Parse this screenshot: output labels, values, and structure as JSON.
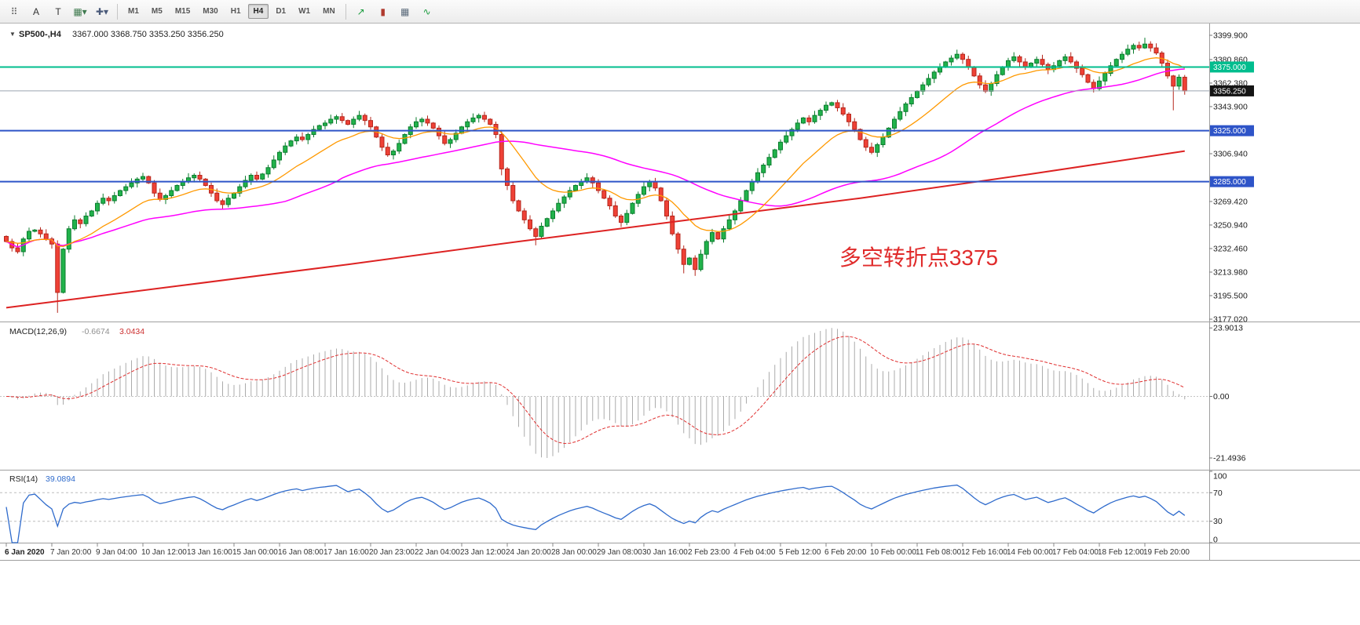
{
  "toolbar": {
    "left_buttons": [
      {
        "name": "pattern-grid-icon",
        "glyph": "⠿",
        "color": "#5a5a5a"
      },
      {
        "name": "text-label-tool",
        "glyph": "A",
        "color": "#333333"
      },
      {
        "name": "text-tool",
        "glyph": "T",
        "color": "#333333"
      },
      {
        "name": "shapes-dropdown",
        "glyph": "▦▾",
        "color": "#3f7a4f"
      },
      {
        "name": "cursor-dropdown",
        "glyph": "✚▾",
        "color": "#4a5a7a"
      }
    ],
    "timeframes": [
      "M1",
      "M5",
      "M15",
      "M30",
      "H1",
      "H4",
      "D1",
      "W1",
      "MN"
    ],
    "active_timeframe": "H4",
    "right_buttons": [
      {
        "name": "trend-up-icon",
        "glyph": "↗",
        "color": "#1a9c3e"
      },
      {
        "name": "candlestick-mode-icon",
        "glyph": "▮",
        "color": "#b03a2e"
      },
      {
        "name": "tile-windows-icon",
        "glyph": "▦",
        "color": "#5a6a7a"
      },
      {
        "name": "line-chart-icon",
        "glyph": "∿",
        "color": "#1a9c3e"
      }
    ]
  },
  "chart": {
    "symbol": "SP500-,H4",
    "ohlc": "3367.000 3368.750 3353.250 3356.250",
    "annotation": {
      "text": "多空转折点3375",
      "color": "#e02b2b"
    },
    "price_axis": {
      "labels": [
        "3399.900",
        "3380.860",
        "3362.380",
        "3343.900",
        "3306.940",
        "3269.420",
        "3250.940",
        "3232.460",
        "3213.980",
        "3195.500",
        "3177.020"
      ],
      "badges": [
        {
          "value": "3375.000",
          "price": 3375.0,
          "bg": "#00bd8e"
        },
        {
          "value": "3356.250",
          "price": 3356.25,
          "bg": "#141414"
        },
        {
          "value": "3325.000",
          "price": 3325.0,
          "bg": "#2e54c8"
        },
        {
          "value": "3285.000",
          "price": 3285.0,
          "bg": "#2e54c8"
        }
      ]
    },
    "hlines": [
      {
        "price": 3375.0,
        "color": "#00bd8e",
        "width": 2
      },
      {
        "price": 3325.0,
        "color": "#2e54c8",
        "width": 2
      },
      {
        "price": 3285.0,
        "color": "#2e54c8",
        "width": 2
      },
      {
        "price": 3356.25,
        "color": "#9aa4b0",
        "width": 1
      }
    ],
    "price_range": [
      3177.02,
      3399.9
    ]
  },
  "chart_data": {
    "type": "candlestick",
    "symbol": "SP500-",
    "timeframe": "H4",
    "colors": {
      "up": "#21b24b",
      "up_border": "#0b7d2e",
      "down": "#ef4136",
      "down_border": "#b5271c"
    },
    "closes": [
      3238,
      3233,
      3230,
      3240,
      3246,
      3247,
      3244,
      3240,
      3236,
      3198,
      3232,
      3248,
      3255,
      3252,
      3258,
      3262,
      3268,
      3272,
      3270,
      3274,
      3278,
      3281,
      3284,
      3287,
      3289,
      3284,
      3276,
      3271,
      3274,
      3278,
      3282,
      3285,
      3288,
      3290,
      3287,
      3282,
      3276,
      3270,
      3267,
      3272,
      3276,
      3281,
      3286,
      3290,
      3287,
      3291,
      3296,
      3302,
      3308,
      3313,
      3317,
      3320,
      3318,
      3322,
      3326,
      3329,
      3331,
      3334,
      3336,
      3333,
      3330,
      3334,
      3337,
      3333,
      3328,
      3320,
      3312,
      3306,
      3309,
      3315,
      3322,
      3328,
      3332,
      3334,
      3331,
      3327,
      3321,
      3315,
      3318,
      3323,
      3328,
      3332,
      3335,
      3337,
      3334,
      3330,
      3322,
      3295,
      3282,
      3270,
      3262,
      3255,
      3248,
      3242,
      3250,
      3256,
      3262,
      3268,
      3273,
      3278,
      3282,
      3285,
      3288,
      3284,
      3278,
      3272,
      3266,
      3258,
      3253,
      3260,
      3268,
      3275,
      3281,
      3285,
      3280,
      3270,
      3258,
      3244,
      3232,
      3220,
      3225,
      3216,
      3228,
      3238,
      3245,
      3240,
      3248,
      3255,
      3262,
      3270,
      3278,
      3285,
      3292,
      3298,
      3304,
      3310,
      3316,
      3321,
      3326,
      3331,
      3335,
      3332,
      3337,
      3341,
      3345,
      3347,
      3343,
      3338,
      3332,
      3326,
      3318,
      3312,
      3308,
      3314,
      3320,
      3327,
      3334,
      3340,
      3346,
      3351,
      3356,
      3361,
      3366,
      3371,
      3375,
      3379,
      3382,
      3385,
      3381,
      3375,
      3368,
      3361,
      3356,
      3362,
      3369,
      3375,
      3380,
      3383,
      3379,
      3375,
      3378,
      3381,
      3377,
      3373,
      3376,
      3380,
      3383,
      3379,
      3374,
      3369,
      3363,
      3358,
      3364,
      3370,
      3376,
      3381,
      3385,
      3389,
      3392,
      3390,
      3393,
      3390,
      3386,
      3378,
      3368,
      3360,
      3367,
      3356.25
    ],
    "wick_overrides": [
      {
        "i": 9,
        "low": 3182
      },
      {
        "i": 87,
        "low": 3290
      },
      {
        "i": 93,
        "low": 3235
      },
      {
        "i": 119,
        "low": 3213
      },
      {
        "i": 121,
        "low": 3211
      },
      {
        "i": 191,
        "low": 3355
      },
      {
        "i": 200,
        "high": 3398
      },
      {
        "i": 205,
        "low": 3341
      },
      {
        "i": 207,
        "high": 3368.75,
        "low": 3353.25
      }
    ],
    "moving_averages": {
      "fast": {
        "type": "ema",
        "period": 16,
        "color": "#ff9900"
      },
      "mid": {
        "type": "sma",
        "period": 50,
        "color": "#ff00ff"
      },
      "slow_anchors": [
        [
          0,
          3186
        ],
        [
          30,
          3203
        ],
        [
          60,
          3220
        ],
        [
          90,
          3238
        ],
        [
          120,
          3255
        ],
        [
          150,
          3272
        ],
        [
          180,
          3291
        ],
        [
          207,
          3309
        ]
      ],
      "slow_color": "#dd2222"
    }
  },
  "macd": {
    "label": "MACD(12,26,9)",
    "value_main": "-0.6674",
    "value_signal": "3.0434",
    "params": {
      "fast": 12,
      "slow": 26,
      "signal": 9
    },
    "axis": [
      {
        "label": "23.9013",
        "value": 23.9013
      },
      {
        "label": "0.00",
        "value": 0
      },
      {
        "label": "-21.4936",
        "value": -21.4936
      }
    ],
    "scale_max_pos": 23.9013,
    "scale_max_neg": 21.4936,
    "hist_color": "#ababab",
    "signal_color": "#e03030"
  },
  "rsi": {
    "label": "RSI(14)",
    "value": "39.0894",
    "period": 14,
    "levels": [
      70,
      30
    ],
    "axis": [
      {
        "label": "100",
        "value": 100
      },
      {
        "label": "70",
        "value": 70
      },
      {
        "label": "30",
        "value": 30
      },
      {
        "label": "0",
        "value": 0
      }
    ],
    "color": "#2f6bcc"
  },
  "time_axis": {
    "labels": [
      "6 Jan 2020",
      "7 Jan 20:00",
      "9 Jan 04:00",
      "10 Jan 12:00",
      "13 Jan 16:00",
      "15 Jan 00:00",
      "16 Jan 08:00",
      "17 Jan 16:00",
      "20 Jan 23:00",
      "22 Jan 04:00",
      "23 Jan 12:00",
      "24 Jan 20:00",
      "28 Jan 00:00",
      "29 Jan 08:00",
      "30 Jan 16:00",
      "2 Feb 23:00",
      "4 Feb 04:00",
      "5 Feb 12:00",
      "6 Feb 20:00",
      "10 Feb 00:00",
      "11 Feb 08:00",
      "12 Feb 16:00",
      "14 Feb 00:00",
      "17 Feb 04:00",
      "18 Feb 12:00",
      "19 Feb 20:00"
    ]
  }
}
